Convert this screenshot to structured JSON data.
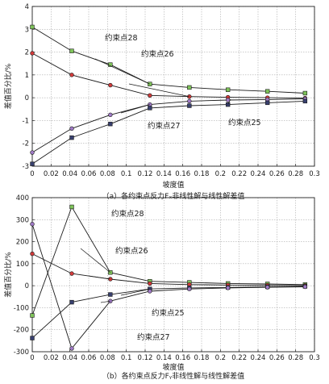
{
  "colors": {
    "background": "#ffffff",
    "frame": "#222222",
    "grid": "#9a9a9a",
    "line": "#1a1a1a",
    "marker_green": "#7fc45a",
    "marker_red": "#d23b3b",
    "marker_purple": "#a07bc6",
    "marker_navy": "#38406f"
  },
  "chart_data": [
    {
      "type": "line",
      "panel": "a",
      "caption": "（a）各约束点反力Fₓ非线性解与线性解差值",
      "xlabel": "坡度值",
      "ylabel": "差值百分比/%",
      "xlim": [
        0,
        0.3
      ],
      "ylim": [
        -3,
        4
      ],
      "xticks": [
        "0",
        "0.02",
        "0.04",
        "0.06",
        "0.08",
        "0.1",
        "0.12",
        "0.14",
        "0.16",
        "0.18",
        "0.2",
        "0.22",
        "0.24",
        "0.26",
        "0.28",
        "0.3"
      ],
      "yticks": [
        "-3",
        "-2",
        "-1",
        "0",
        "1",
        "2",
        "3",
        "4"
      ],
      "grid": true,
      "x": [
        0,
        0.042,
        0.083,
        0.125,
        0.167,
        0.208,
        0.25,
        0.29
      ],
      "series": [
        {
          "name": "约束点28",
          "marker": "square",
          "color": "#7fc45a",
          "values": [
            3.1,
            2.05,
            1.45,
            0.6,
            0.45,
            0.35,
            0.28,
            0.2
          ]
        },
        {
          "name": "约束点26",
          "marker": "circle",
          "color": "#d23b3b",
          "values": [
            1.95,
            1.0,
            0.55,
            0.1,
            0.05,
            0.02,
            0.0,
            -0.02
          ]
        },
        {
          "name": "约束点27",
          "marker": "circle",
          "color": "#a07bc6",
          "values": [
            -2.4,
            -1.35,
            -0.75,
            -0.3,
            -0.15,
            -0.1,
            -0.08,
            -0.05
          ]
        },
        {
          "name": "约束点25",
          "marker": "square",
          "color": "#38406f",
          "values": [
            -2.9,
            -1.75,
            -1.15,
            -0.45,
            -0.35,
            -0.3,
            -0.22,
            -0.15
          ]
        }
      ],
      "annotations": [
        {
          "text": "约束点28",
          "series": "约束点28"
        },
        {
          "text": "约束点26",
          "series": "约束点26"
        },
        {
          "text": "约束点27",
          "series": "约束点27"
        },
        {
          "text": "约束点25",
          "series": "约束点25"
        }
      ]
    },
    {
      "type": "line",
      "panel": "b",
      "caption": "（b）各约束点反力Fᵧ非线性解与线性解差值",
      "xlabel": "坡度值",
      "ylabel": "差值百分比/%",
      "xlim": [
        0,
        0.3
      ],
      "ylim": [
        -300,
        400
      ],
      "xticks": [
        "0",
        "0.02",
        "0.04",
        "0.06",
        "0.08",
        "0.1",
        "0.12",
        "0.14",
        "0.16",
        "0.18",
        "0.2",
        "0.22",
        "0.24",
        "0.26",
        "0.28",
        "0.3"
      ],
      "yticks": [
        "-300",
        "-200",
        "-100",
        "0",
        "100",
        "200",
        "300",
        "400"
      ],
      "grid": true,
      "x": [
        0,
        0.042,
        0.083,
        0.125,
        0.167,
        0.208,
        0.25,
        0.29
      ],
      "series": [
        {
          "name": "约束点28",
          "marker": "square",
          "color": "#7fc45a",
          "values": [
            -135,
            358,
            60,
            20,
            15,
            10,
            8,
            5
          ]
        },
        {
          "name": "约束点26",
          "marker": "circle",
          "color": "#d23b3b",
          "values": [
            145,
            55,
            30,
            10,
            5,
            3,
            2,
            1
          ]
        },
        {
          "name": "约束点25",
          "marker": "square",
          "color": "#38406f",
          "values": [
            -238,
            -75,
            -40,
            -15,
            -10,
            -8,
            -5,
            -3
          ]
        },
        {
          "name": "约束点27",
          "marker": "circle",
          "color": "#a07bc6",
          "values": [
            280,
            -285,
            -70,
            -25,
            -15,
            -10,
            -7,
            -5
          ]
        }
      ],
      "annotations": [
        {
          "text": "约束点28",
          "series": "约束点28"
        },
        {
          "text": "约束点26",
          "series": "约束点26"
        },
        {
          "text": "约束点25",
          "series": "约束点25"
        },
        {
          "text": "约束点27",
          "series": "约束点27"
        }
      ]
    }
  ]
}
